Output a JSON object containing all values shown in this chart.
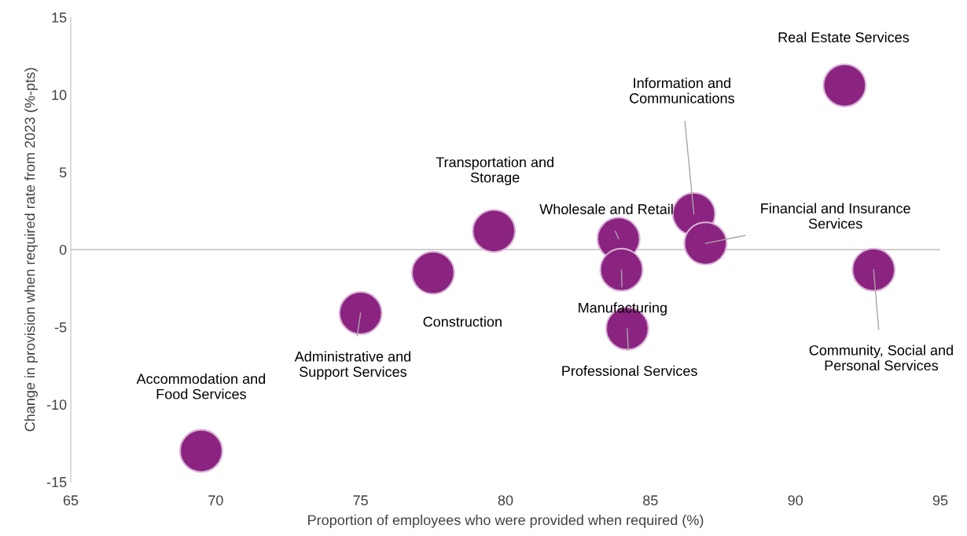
{
  "chart_data": {
    "type": "bubble",
    "xlabel": "Proportion of employees who were provided when required (%)",
    "ylabel": "Change in provision when required rate from 2023 (%-pts)",
    "xlim": [
      65,
      95
    ],
    "xticks": [
      65,
      70,
      75,
      80,
      85,
      90,
      95
    ],
    "ylim": [
      -15,
      15
    ],
    "yticks": [
      -15,
      -10,
      -5,
      0,
      5,
      10,
      15
    ],
    "grid": false,
    "ref_lines": [
      {
        "axis": "y",
        "value": 0,
        "color": "#bfbfbf"
      }
    ],
    "series": [
      {
        "color": "#8b2381",
        "x": [
          69.5,
          75.0,
          77.5,
          79.6,
          83.9,
          84.0,
          84.2,
          86.5,
          86.9,
          91.7,
          92.7
        ],
        "values": [
          -13.0,
          -4.1,
          -1.5,
          1.2,
          0.7,
          -1.3,
          -5.1,
          2.3,
          0.4,
          10.6,
          -1.3
        ],
        "sizes": [
          1,
          1,
          1,
          1,
          1,
          1,
          1,
          1,
          1,
          1,
          1
        ]
      }
    ],
    "annotations": [
      "Accommodation and\nFood Services",
      {
        "text": "Administrative and\nSupport Services",
        "x": 75.0,
        "y": -4.1
      },
      "Construction",
      "Transportation and\nStorage",
      {
        "text": "Wholesale and Retail",
        "x": 83.9,
        "y": 0.7
      },
      {
        "text": "Manufacturing",
        "x": 84.0,
        "y": -1.3
      },
      {
        "text": "Professional Services",
        "x": 84.2,
        "y": -5.1
      },
      {
        "text": "Information and\nCommunications",
        "x": 86.5,
        "y": 2.3
      },
      {
        "text": "Financial and Insurance\nServices",
        "x": 86.9,
        "y": 0.4
      },
      "Real Estate Services",
      {
        "text": "Community, Social and\nPersonal Services",
        "x": 92.7,
        "y": -1.3
      }
    ]
  }
}
